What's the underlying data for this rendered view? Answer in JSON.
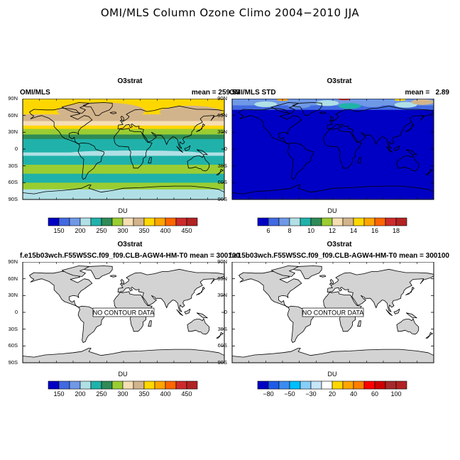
{
  "title": "OMI/MLS Column Ozone Climo 2004−2010 JJA",
  "lat_ticks": [
    "90N",
    "60N",
    "30N",
    "0",
    "30S",
    "60S",
    "90S"
  ],
  "du_scale": [
    "#0000c4",
    "#4169e1",
    "#6f98e6",
    "#b0e0e6",
    "#20b2aa",
    "#2e8b57",
    "#9acd32",
    "#f5deb3",
    "#d2b48c",
    "#ffd700",
    "#ffa500",
    "#ff6600",
    "#cd2b2b",
    "#b22222"
  ],
  "std_scale": [
    "#0000c4",
    "#4169e1",
    "#6f98e6",
    "#b0e0e6",
    "#20b2aa",
    "#2e8b57",
    "#9acd32",
    "#f5deb3",
    "#d2b48c",
    "#ffd700",
    "#ffa500",
    "#ff6600",
    "#cd2b2b",
    "#b22222"
  ],
  "diff_scale": [
    "#0000c4",
    "#1e5ce6",
    "#3c8cf0",
    "#00bfff",
    "#87cefa",
    "#c6e6fa",
    "#ffffff",
    "#ffd700",
    "#ffa500",
    "#ff7f00",
    "#ff0000",
    "#cd0000",
    "#a52a2a",
    "#b22222"
  ],
  "land_color": "#d3d3d3",
  "panels": [
    {
      "title": "O3strat",
      "left_string": "OMI/MLS",
      "right_string": "mean = 259.53",
      "kind": "ozone",
      "colorbar_title": "DU",
      "colorbar_labels": [
        "150",
        "200",
        "250",
        "300",
        "350",
        "400",
        "450"
      ],
      "colorbar_label_slots": [
        1,
        3,
        5,
        7,
        9,
        11,
        13
      ]
    },
    {
      "title": "O3strat",
      "left_string": "OMI/MLS STD",
      "right_string": "mean =   2.89",
      "kind": "std",
      "colorbar_title": "DU",
      "colorbar_labels": [
        "6",
        "8",
        "10",
        "12",
        "14",
        "16",
        "18"
      ],
      "colorbar_label_slots": [
        1,
        3,
        5,
        7,
        9,
        11,
        13
      ]
    },
    {
      "title": "O3strat",
      "left_string": "f.e15b03wch.F55W5SC.f09_f09.CLB-AGW4-HM-T0",
      "right_string": "mean = 300100",
      "kind": "empty",
      "nocontour": "NO CONTOUR DATA",
      "colorbar_title": "DU",
      "colorbar_labels": [
        "150",
        "200",
        "250",
        "300",
        "350",
        "400",
        "450"
      ],
      "colorbar_label_slots": [
        1,
        3,
        5,
        7,
        9,
        11,
        13
      ]
    },
    {
      "title": "O3strat",
      "left_string": "f.e15b03wch.F55W5SC.f09_f09.CLB-AGW4-HM-T0",
      "right_string": "mean = 300100",
      "kind": "empty",
      "nocontour": "NO CONTOUR DATA",
      "colorbar_title": "DU",
      "colorbar_labels": [
        "−80",
        "−50",
        "−30",
        "20",
        "40",
        "60",
        "100"
      ],
      "colorbar_label_slots": [
        1,
        3,
        5,
        7,
        9,
        11,
        13
      ]
    }
  ]
}
